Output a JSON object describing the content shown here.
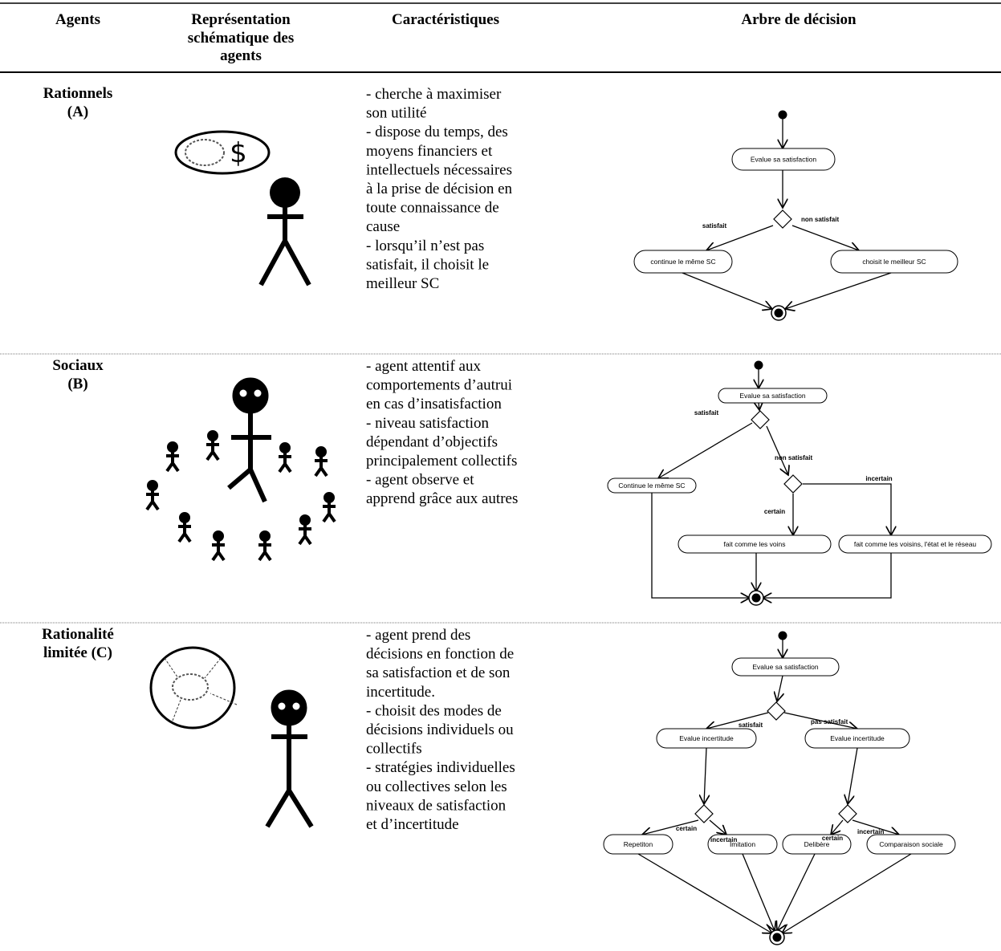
{
  "table": {
    "header": [
      [
        "Agents"
      ],
      [
        "Représentation",
        "schématique des",
        "agents"
      ],
      [
        "Caractéristiques"
      ],
      [
        "Arbre de décision"
      ]
    ],
    "rows": [
      {
        "agent": [
          "Rationnels",
          "(A)"
        ],
        "icon_text": "$",
        "characteristics": [
          "- cherche à maximiser",
          "son utilité",
          "- dispose du temps, des",
          "moyens financiers et",
          "intellectuels nécessaires",
          "à la prise de décision en",
          "toute connaissance de",
          "cause",
          "- lorsqu’il n’est pas",
          "satisfait, il choisit le",
          "meilleur SC"
        ],
        "tree": {
          "nodes": [
            "Evalue sa satisfaction",
            "continue le même SC",
            "choisit le meilleur SC"
          ],
          "edge_labels": [
            "satisfait",
            "non satisfait"
          ]
        }
      },
      {
        "agent": [
          "Sociaux",
          "(B)"
        ],
        "characteristics": [
          "- agent attentif aux",
          "comportements d’autrui",
          "en cas d’insatisfaction",
          "- niveau  satisfaction",
          "dépendant d’objectifs",
          "principalement collectifs",
          "- agent observe et",
          "apprend grâce aux autres"
        ],
        "tree": {
          "nodes": [
            "Evalue sa satisfaction",
            "Continue le même SC",
            "fait comme les voins",
            "fait comme les voisins, l'état et le réseau"
          ],
          "edge_labels": [
            "satisfait",
            "non satisfait",
            "incertain",
            "certain"
          ]
        }
      },
      {
        "agent": [
          "Rationalité",
          "limitée (C)"
        ],
        "characteristics": [
          "- agent prend des",
          "décisions en fonction de",
          "sa satisfaction et de son",
          "incertitude.",
          "- choisit des modes de",
          "décisions individuels ou",
          "collectifs",
          "- stratégies individuelles",
          "ou collectives selon les",
          "niveaux de  satisfaction",
          "et d’incertitude"
        ],
        "tree": {
          "nodes": [
            "Evalue sa satisfaction",
            "Evalue incertitude",
            "Evalue incertitude",
            "Repetiton",
            "Imitation",
            "Delibère",
            "Comparaison sociale"
          ],
          "edge_labels": [
            "satisfait",
            "pas satisfait",
            "certain",
            "incertain",
            "certain",
            "incertain"
          ]
        }
      }
    ]
  }
}
